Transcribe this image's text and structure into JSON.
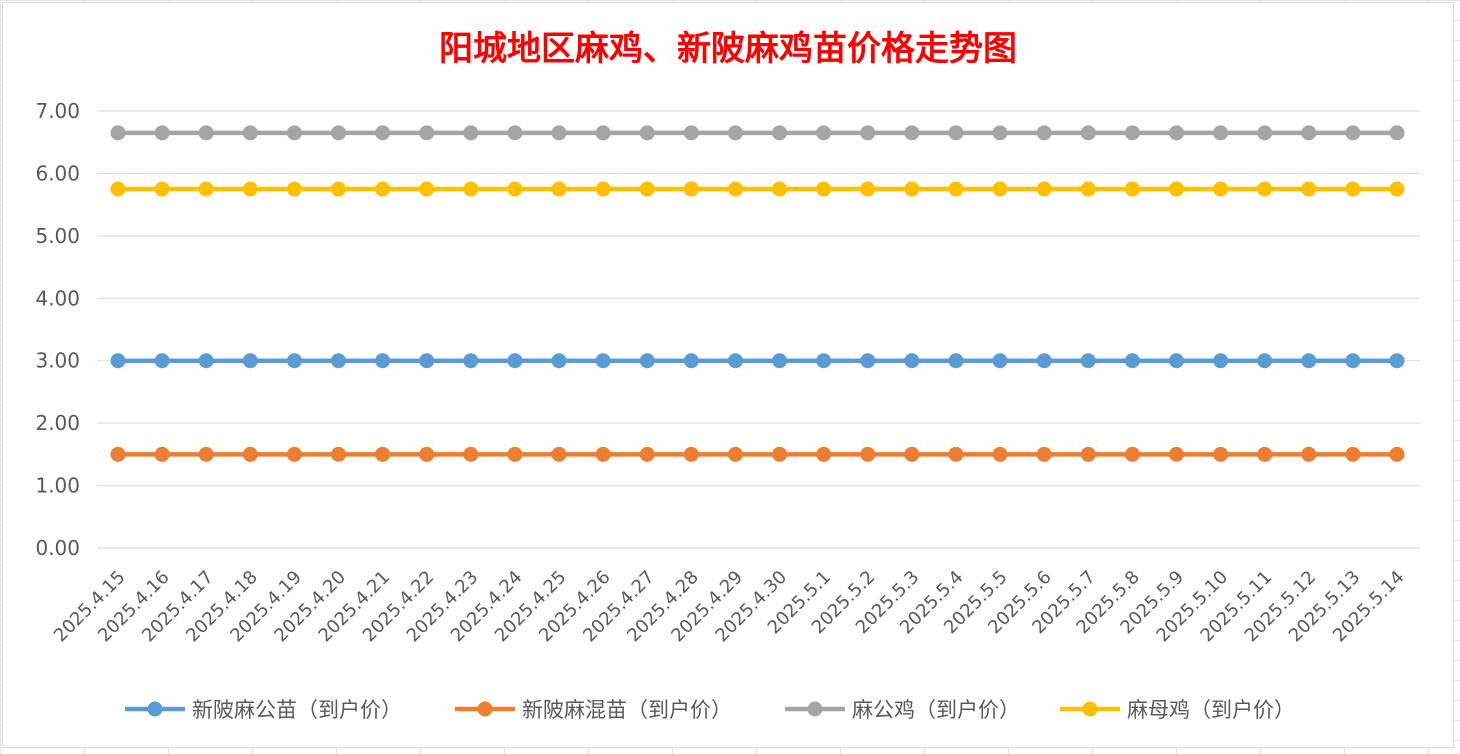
{
  "chart_data": {
    "type": "line",
    "title": "阳城地区麻鸡、新陂麻鸡苗价格走势图",
    "xlabel": "",
    "ylabel": "",
    "ylim": [
      0,
      7
    ],
    "yticks": [
      "0.00",
      "1.00",
      "2.00",
      "3.00",
      "4.00",
      "5.00",
      "6.00",
      "7.00"
    ],
    "grid": true,
    "legend_position": "bottom",
    "categories": [
      "2025.4.15",
      "2025.4.16",
      "2025.4.17",
      "2025.4.18",
      "2025.4.19",
      "2025.4.20",
      "2025.4.21",
      "2025.4.22",
      "2025.4.23",
      "2025.4.24",
      "2025.4.25",
      "2025.4.26",
      "2025.4.27",
      "2025.4.28",
      "2025.4.29",
      "2025.4.30",
      "2025.5.1",
      "2025.5.2",
      "2025.5.3",
      "2025.5.4",
      "2025.5.5",
      "2025.5.6",
      "2025.5.7",
      "2025.5.8",
      "2025.5.9",
      "2025.5.10",
      "2025.5.11",
      "2025.5.12",
      "2025.5.13",
      "2025.5.14"
    ],
    "series": [
      {
        "name": "新陂麻公苗（到户价）",
        "color": "#5b9bd5",
        "values": [
          3.0,
          3.0,
          3.0,
          3.0,
          3.0,
          3.0,
          3.0,
          3.0,
          3.0,
          3.0,
          3.0,
          3.0,
          3.0,
          3.0,
          3.0,
          3.0,
          3.0,
          3.0,
          3.0,
          3.0,
          3.0,
          3.0,
          3.0,
          3.0,
          3.0,
          3.0,
          3.0,
          3.0,
          3.0,
          3.0
        ]
      },
      {
        "name": "新陂麻混苗（到户价）",
        "color": "#ed7d31",
        "values": [
          1.5,
          1.5,
          1.5,
          1.5,
          1.5,
          1.5,
          1.5,
          1.5,
          1.5,
          1.5,
          1.5,
          1.5,
          1.5,
          1.5,
          1.5,
          1.5,
          1.5,
          1.5,
          1.5,
          1.5,
          1.5,
          1.5,
          1.5,
          1.5,
          1.5,
          1.5,
          1.5,
          1.5,
          1.5,
          1.5
        ]
      },
      {
        "name": "麻公鸡（到户价）",
        "color": "#a5a5a5",
        "values": [
          6.65,
          6.65,
          6.65,
          6.65,
          6.65,
          6.65,
          6.65,
          6.65,
          6.65,
          6.65,
          6.65,
          6.65,
          6.65,
          6.65,
          6.65,
          6.65,
          6.65,
          6.65,
          6.65,
          6.65,
          6.65,
          6.65,
          6.65,
          6.65,
          6.65,
          6.65,
          6.65,
          6.65,
          6.65,
          6.65
        ]
      },
      {
        "name": "麻母鸡（到户价）",
        "color": "#ffc000",
        "values": [
          5.75,
          5.75,
          5.75,
          5.75,
          5.75,
          5.75,
          5.75,
          5.75,
          5.75,
          5.75,
          5.75,
          5.75,
          5.75,
          5.75,
          5.75,
          5.75,
          5.75,
          5.75,
          5.75,
          5.75,
          5.75,
          5.75,
          5.75,
          5.75,
          5.75,
          5.75,
          5.75,
          5.75,
          5.75,
          5.75
        ]
      }
    ]
  }
}
